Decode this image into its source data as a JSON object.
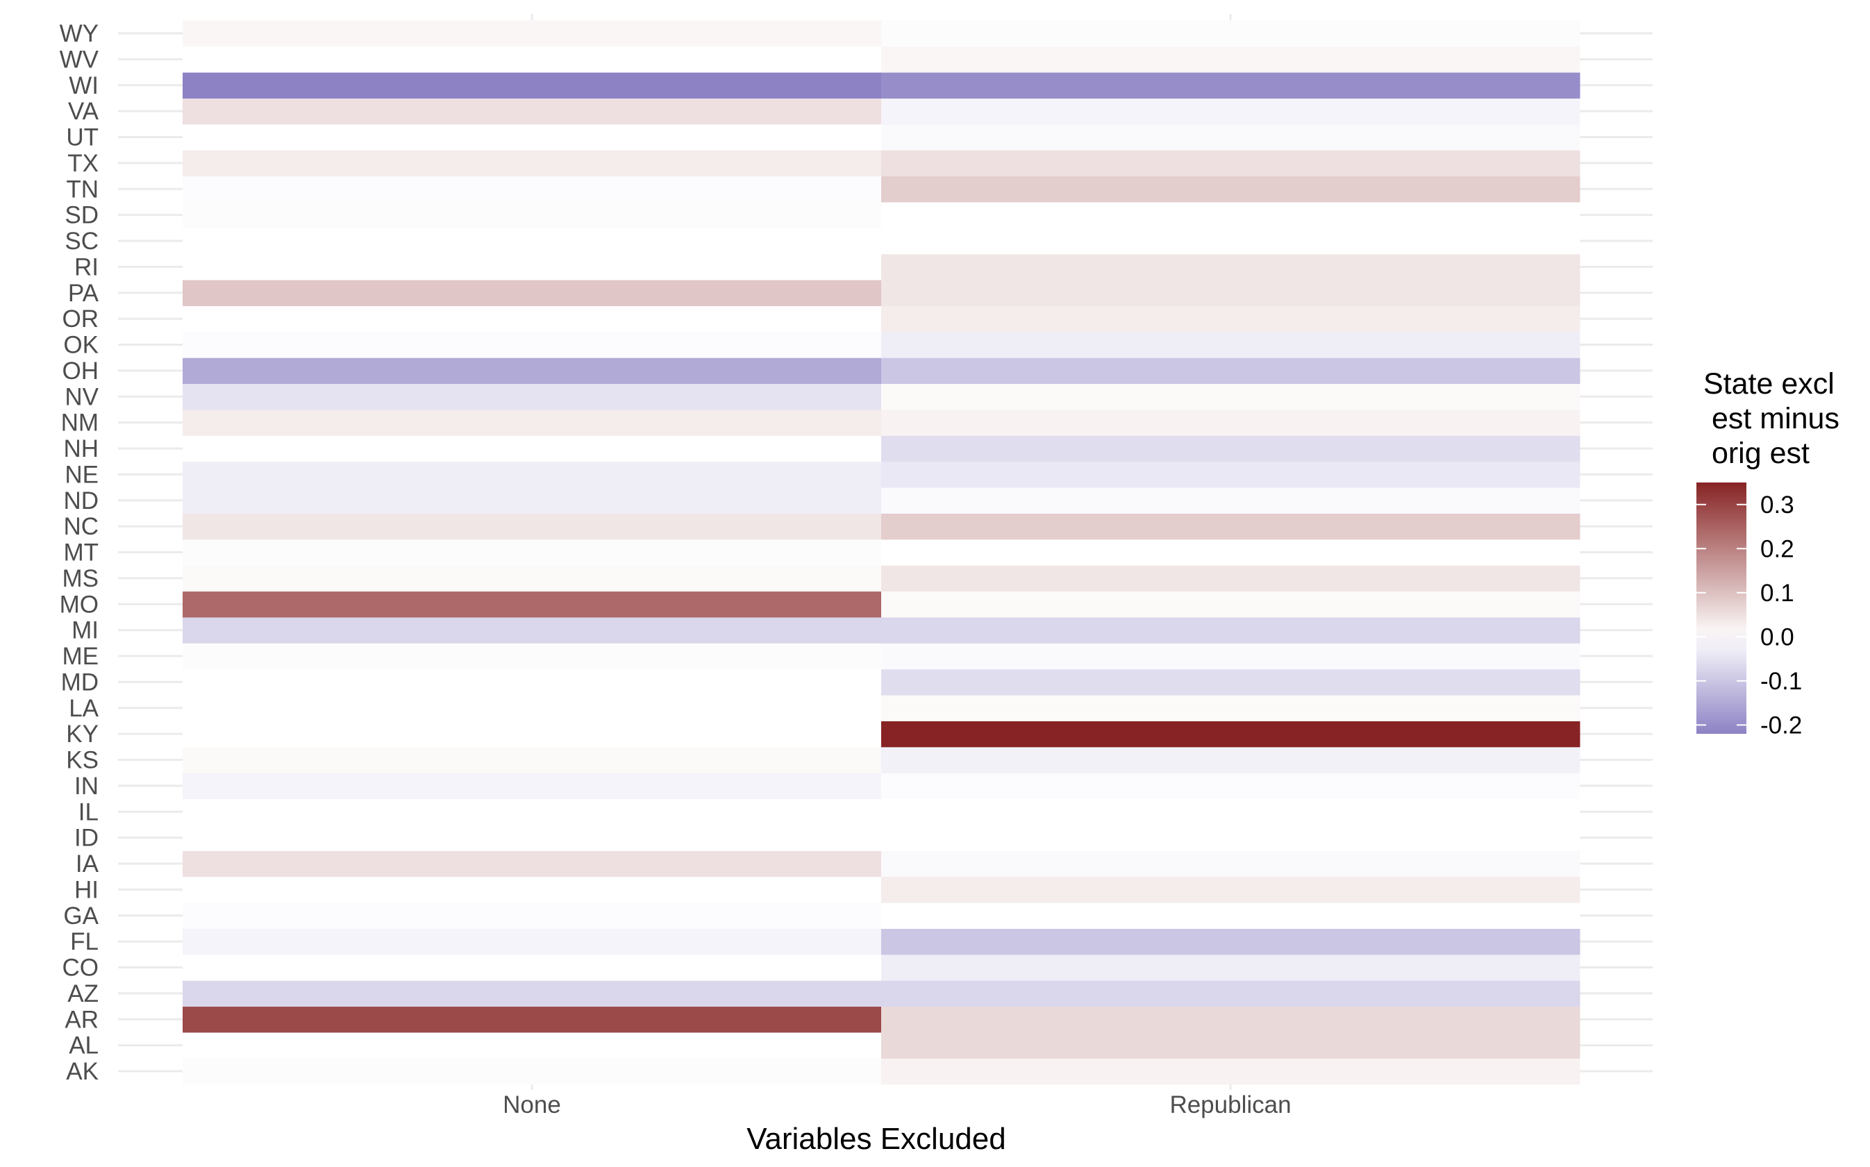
{
  "chart_data": {
    "type": "heatmap",
    "xlabel": "Variables Excluded",
    "ylabel": "",
    "x_categories": [
      "None",
      "Republican"
    ],
    "y_categories": [
      "AK",
      "AL",
      "AR",
      "AZ",
      "CO",
      "FL",
      "GA",
      "HI",
      "IA",
      "ID",
      "IL",
      "IN",
      "KS",
      "KY",
      "LA",
      "MD",
      "ME",
      "MI",
      "MO",
      "MS",
      "MT",
      "NC",
      "ND",
      "NE",
      "NH",
      "NM",
      "NV",
      "OH",
      "OK",
      "OR",
      "PA",
      "RI",
      "SC",
      "SD",
      "TN",
      "TX",
      "UT",
      "VA",
      "WI",
      "WV",
      "WY"
    ],
    "values": {
      "None": [
        0.005,
        0.0,
        0.29,
        -0.07,
        0.0,
        -0.02,
        -0.005,
        0.0,
        0.05,
        0.0,
        0.0,
        -0.02,
        0.01,
        0.0,
        0.0,
        0.0,
        0.005,
        -0.07,
        0.24,
        0.01,
        0.005,
        0.04,
        -0.03,
        -0.03,
        0.0,
        0.03,
        -0.05,
        -0.15,
        -0.005,
        0.0,
        0.09,
        0.0,
        0.0,
        0.005,
        -0.005,
        0.03,
        0.0,
        0.05,
        -0.22,
        0.0,
        0.015
      ],
      "Republican": [
        0.02,
        0.06,
        0.06,
        -0.07,
        -0.03,
        -0.1,
        0.0,
        0.03,
        -0.01,
        0.0,
        0.0,
        -0.005,
        -0.025,
        0.35,
        0.01,
        -0.06,
        -0.01,
        -0.07,
        0.01,
        0.04,
        0.0,
        0.08,
        -0.01,
        -0.04,
        -0.06,
        0.02,
        0.01,
        -0.1,
        -0.03,
        0.03,
        0.04,
        0.04,
        0.0,
        0.0,
        0.08,
        0.05,
        -0.01,
        -0.02,
        -0.2,
        0.015,
        0.005
      ]
    },
    "legend": {
      "title_lines": [
        "State excl",
        " est minus",
        " orig est"
      ],
      "ticks": [
        0.3,
        0.2,
        0.1,
        0.0,
        -0.1,
        -0.2
      ],
      "tick_labels": [
        "0.3",
        "0.2",
        "0.1",
        "0.0",
        "-0.1",
        "-0.2"
      ],
      "min": -0.22,
      "max": 0.35,
      "position": "right"
    },
    "colors": {
      "high": "#872324",
      "mid": "#ffffff",
      "low": "#8c82c4",
      "grid": "#ebebeb"
    },
    "grid": true
  }
}
